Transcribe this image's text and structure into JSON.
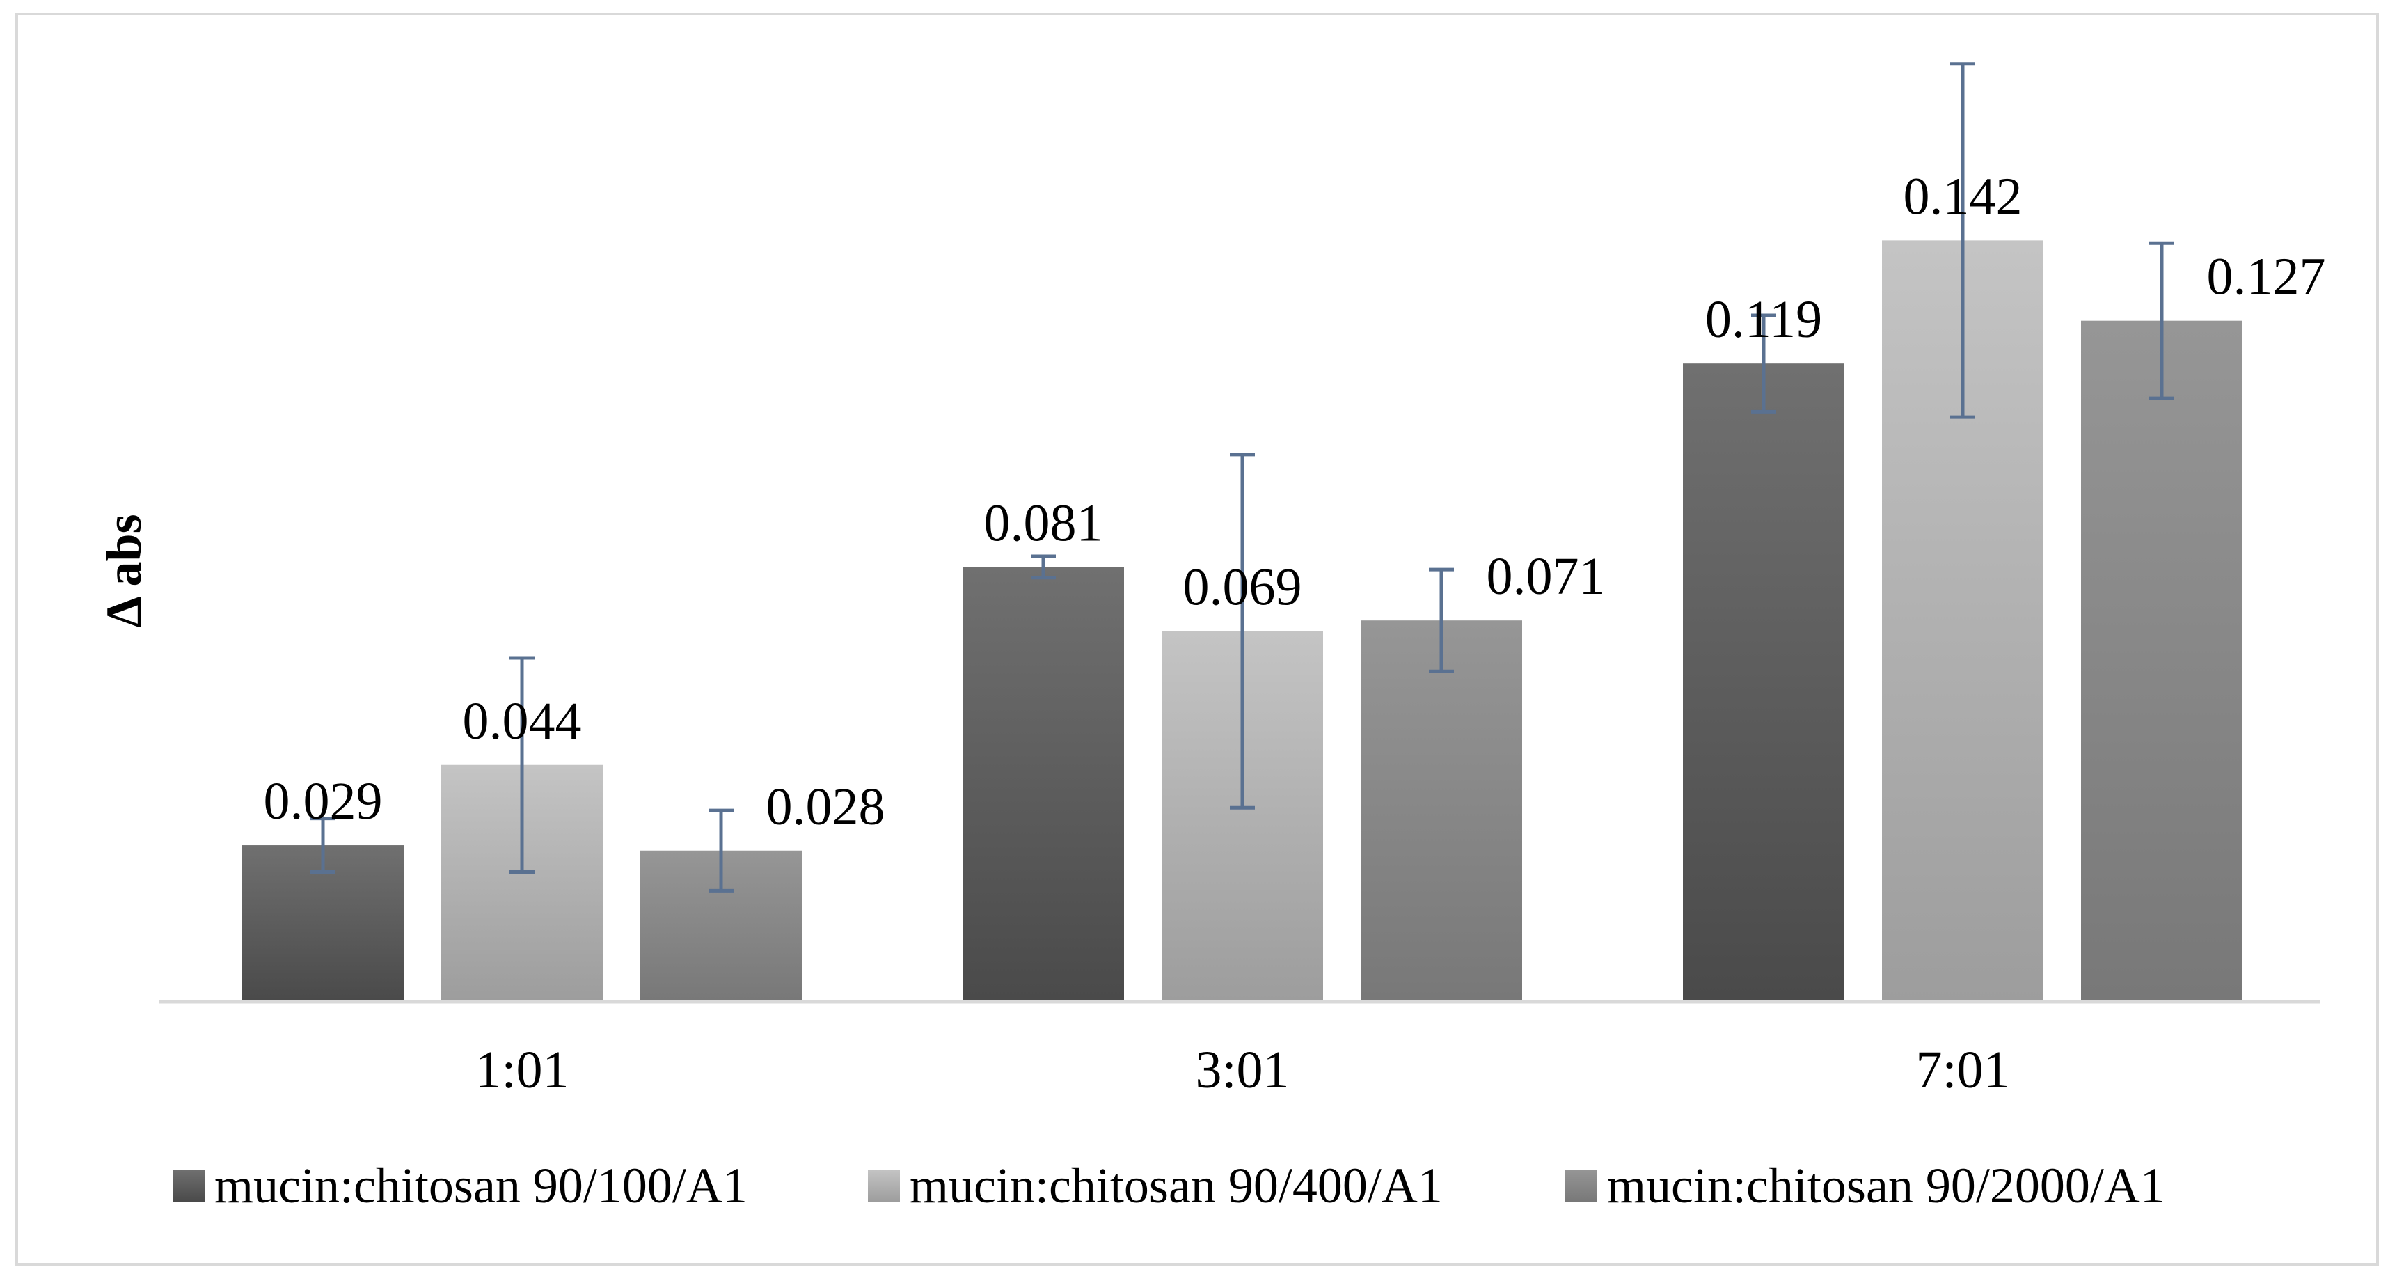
{
  "chart_data": {
    "type": "bar",
    "title": "",
    "xlabel": "",
    "ylabel": "Δ abs",
    "categories": [
      "1:01",
      "3:01",
      "7:01"
    ],
    "series": [
      {
        "name": "mucin:chitosan 90/100/A1",
        "values": [
          0.029,
          0.081,
          0.119
        ],
        "errors": [
          0.005,
          0.002,
          0.009
        ],
        "labels": [
          "0.029",
          "0.081",
          "0.119"
        ],
        "color_top": "#707070",
        "color_bottom": "#4a4a4a"
      },
      {
        "name": "mucin:chitosan 90/400/A1",
        "values": [
          0.044,
          0.069,
          0.142
        ],
        "errors": [
          0.02,
          0.033,
          0.033
        ],
        "labels": [
          "0.044",
          "0.069",
          "0.142"
        ],
        "color_top": "#c4c4c4",
        "color_bottom": "#9d9d9d"
      },
      {
        "name": "mucin:chitosan 90/2000/A1",
        "values": [
          0.028,
          0.071,
          0.127
        ],
        "errors": [
          0.0075,
          0.0095,
          0.0145
        ],
        "labels": [
          "0.028",
          "0.071",
          "0.127"
        ],
        "color_top": "#969696",
        "color_bottom": "#787878"
      }
    ],
    "ylim": [
      0,
      0.175
    ],
    "grid": false,
    "error_bar_color": "#5a7191",
    "axis_color": "#d9d9d9",
    "legend_position": "bottom"
  }
}
